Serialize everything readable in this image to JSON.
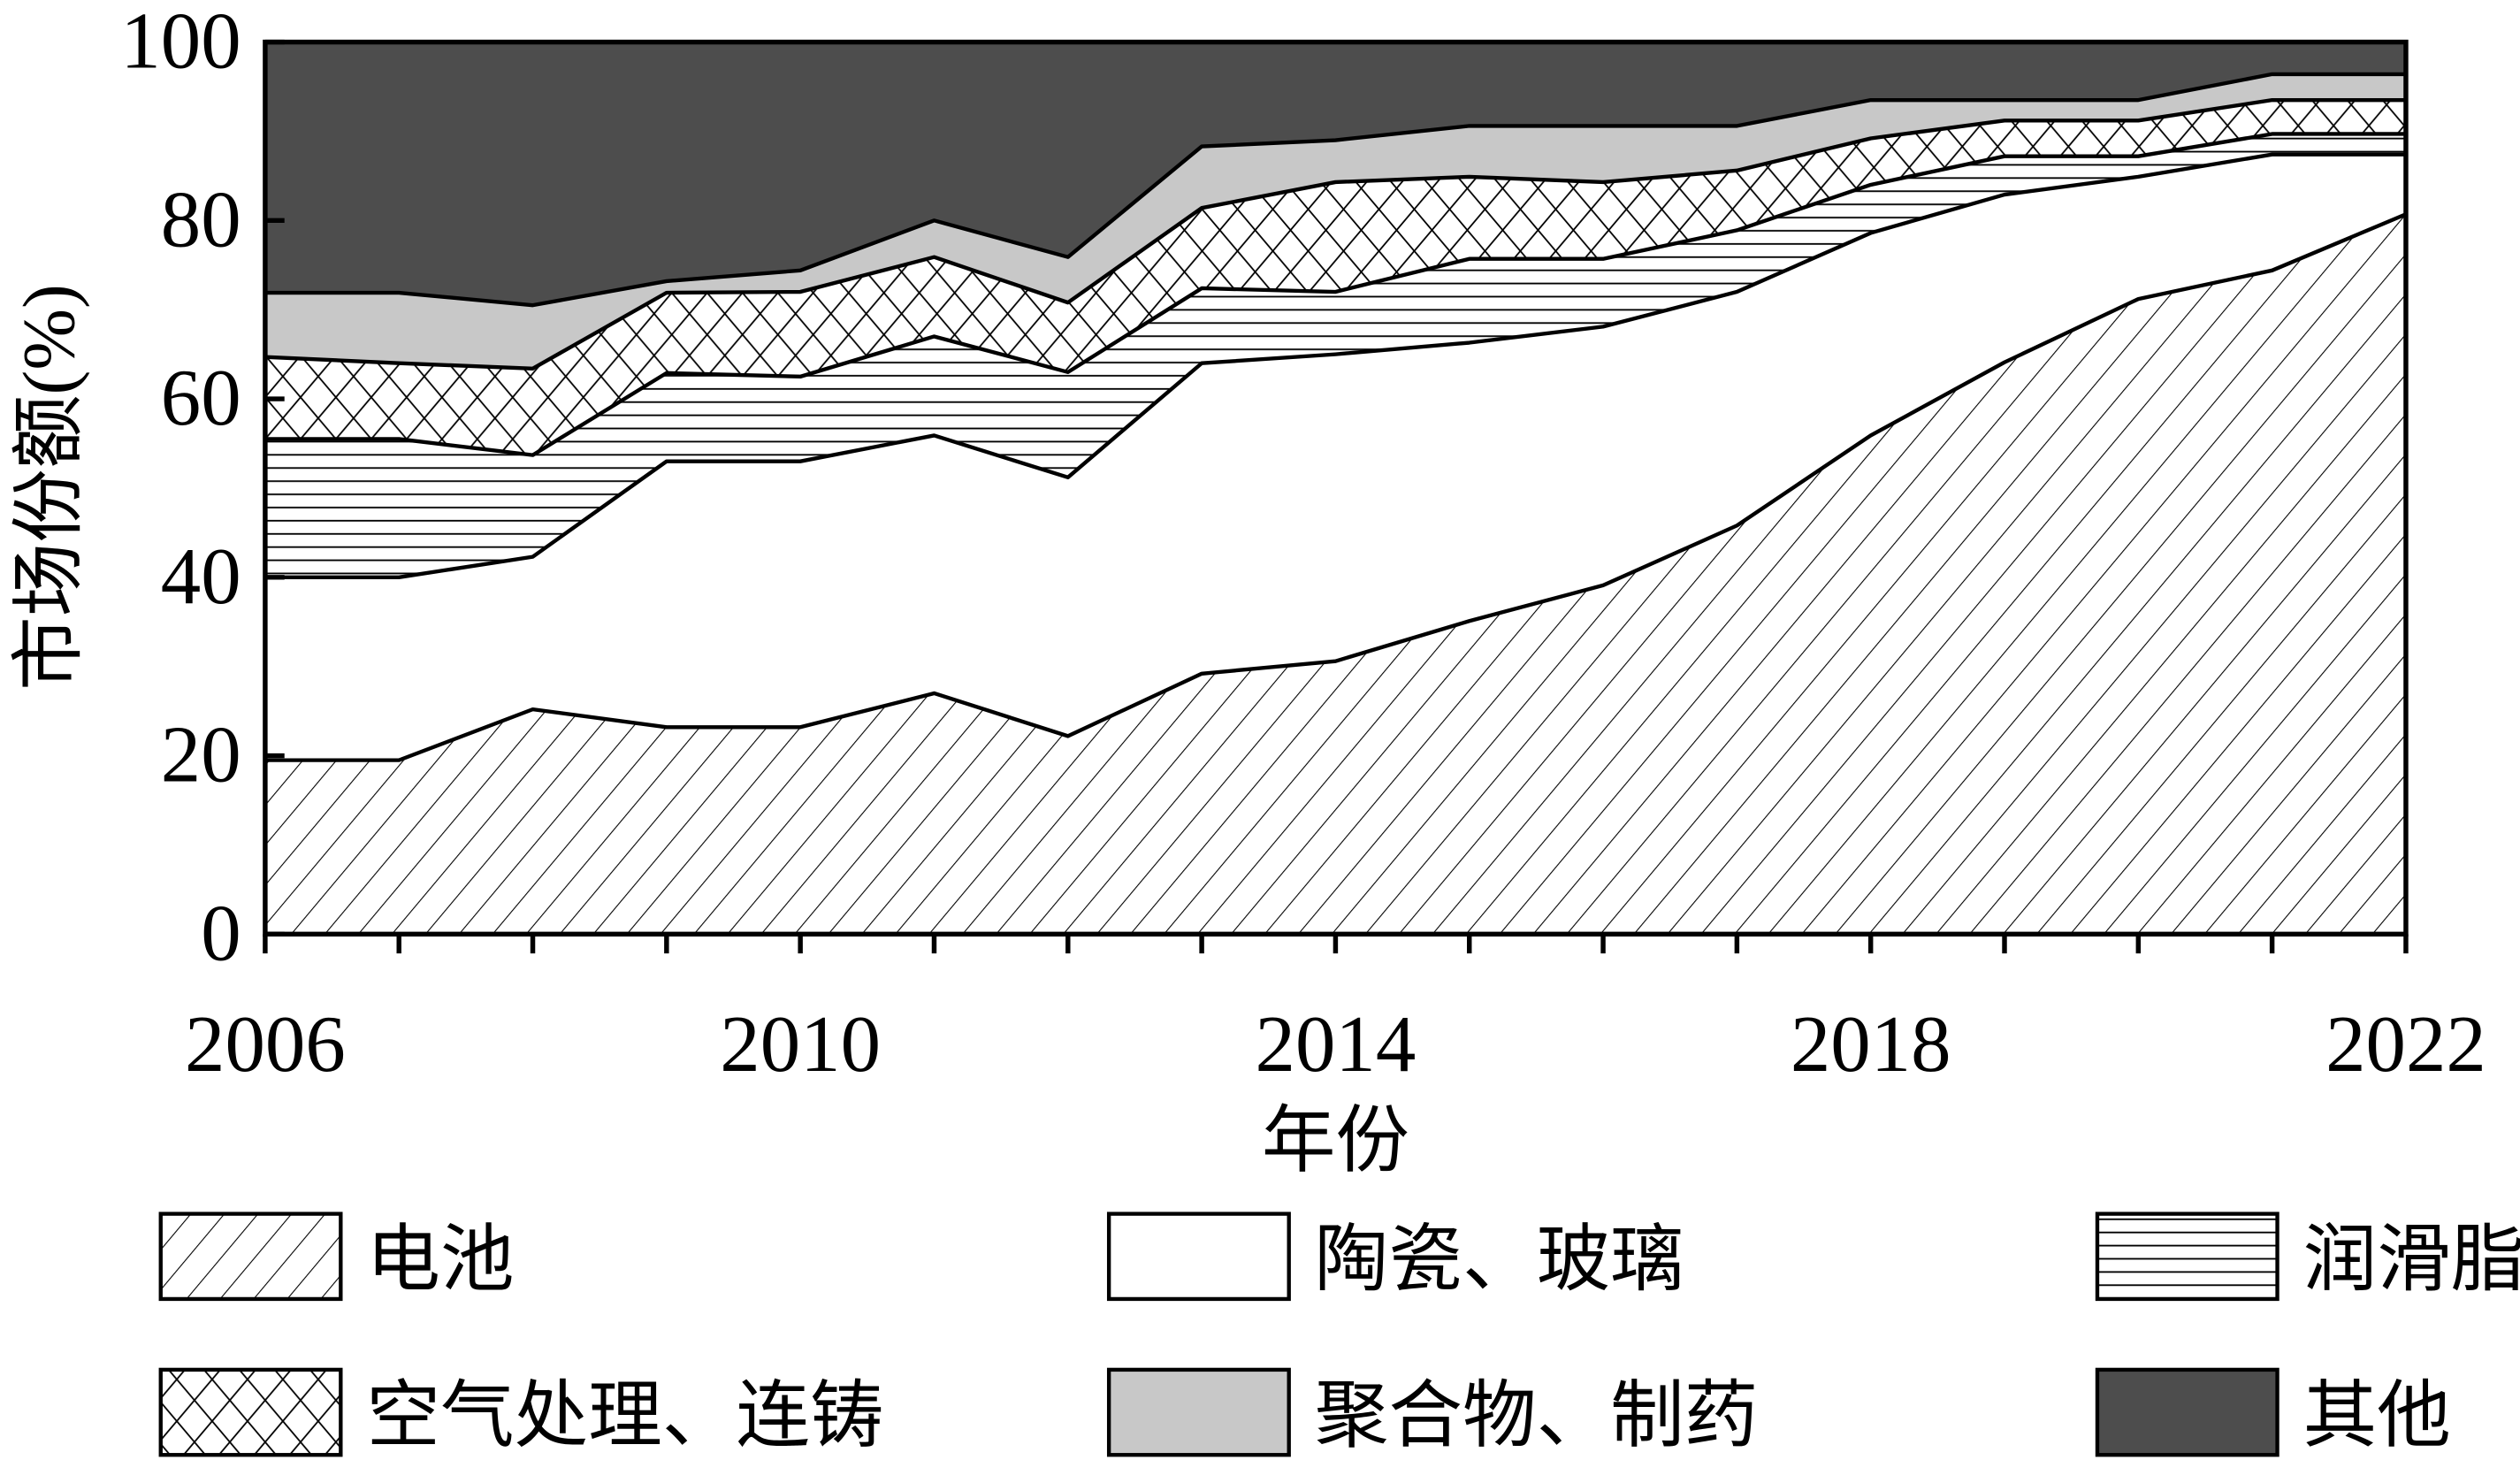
{
  "chart_data": {
    "type": "area",
    "stacked": true,
    "xlabel": "年份",
    "ylabel": "市场份额(%)",
    "xlim": [
      2006,
      2022
    ],
    "ylim": [
      0,
      100
    ],
    "x_ticks": [
      2006,
      2010,
      2014,
      2018,
      2022
    ],
    "y_ticks": [
      0,
      20,
      40,
      60,
      80,
      100
    ],
    "grid": false,
    "legend_position": "bottom",
    "x": [
      2006,
      2007,
      2008,
      2009,
      2010,
      2011,
      2012,
      2013,
      2014,
      2015,
      2016,
      2017,
      2018,
      2019,
      2020,
      2021,
      2022
    ],
    "series": [
      {
        "name": "电池",
        "fill": "diagonal-hatch",
        "values": [
          19.5,
          19.5,
          25.2,
          23.2,
          23.2,
          27,
          22.2,
          29.2,
          30.6,
          35.1,
          39.1,
          45.8,
          55.9,
          64.1,
          71.2,
          74.4,
          80.7
        ]
      },
      {
        "name": "陶瓷、玻璃",
        "fill": "#ffffff",
        "values": [
          20.5,
          20.5,
          17.1,
          29.8,
          29.8,
          28.9,
          29,
          34.8,
          34.4,
          31.2,
          29,
          26.2,
          22.7,
          18.8,
          13.7,
          13,
          6.7
        ]
      },
      {
        "name": "润滑脂",
        "fill": "horizontal-hatch",
        "values": [
          15.5,
          15.5,
          11.4,
          9.9,
          9.5,
          11.1,
          11.8,
          8.4,
          7,
          9.4,
          7.6,
          6.9,
          5.4,
          4.3,
          2.3,
          2.3,
          2.3
        ]
      },
      {
        "name": "空气处理、连铸",
        "fill": "cross-hatch",
        "values": [
          9.2,
          8.5,
          9.7,
          9,
          9.5,
          8.9,
          7.8,
          9,
          12.3,
          9.2,
          8.6,
          6.7,
          5.2,
          4,
          4,
          3.8,
          3.8
        ]
      },
      {
        "name": "聚合物、制药",
        "fill": "#c8c8c8",
        "values": [
          7.2,
          7.9,
          7.1,
          1.3,
          2.4,
          4.1,
          5.1,
          6.9,
          4.7,
          5.7,
          6.3,
          5,
          4.3,
          2.3,
          2.3,
          2.9,
          2.9
        ]
      },
      {
        "name": "其他",
        "fill": "#4d4d4d",
        "values": [
          28.1,
          28.1,
          29.5,
          26.8,
          25.6,
          20,
          24.1,
          11.7,
          11,
          9.4,
          9.4,
          9.4,
          6.5,
          6.5,
          6.5,
          3.6,
          3.6
        ]
      }
    ]
  }
}
